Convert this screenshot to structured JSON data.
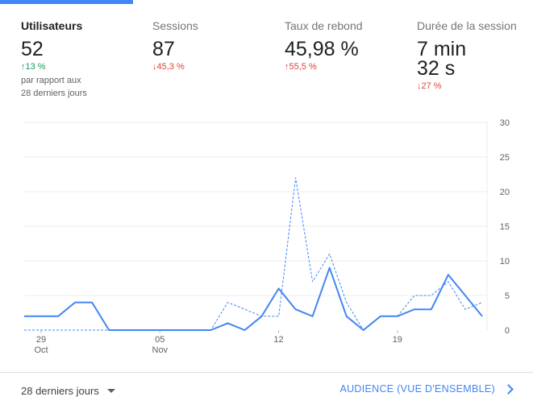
{
  "metrics": [
    {
      "label": "Utilisateurs",
      "value": "52",
      "change": "13 %",
      "direction": "up",
      "compare_line1": "par rapport aux",
      "compare_line2": "28 derniers jours"
    },
    {
      "label": "Sessions",
      "value": "87",
      "change": "45,3 %",
      "direction": "down"
    },
    {
      "label": "Taux de rebond",
      "value": "45,98 %",
      "change": "55,5 %",
      "direction": "up"
    },
    {
      "label": "Durée de la session",
      "value": "7 min\n32 s",
      "change": "27 %",
      "direction": "down"
    }
  ],
  "icons": {
    "up": "arrow-up-icon",
    "down": "arrow-down-icon",
    "dropdown": "caret-down-icon",
    "next": "chevron-right-icon"
  },
  "colors": {
    "accent": "#4285f4",
    "up": "#0f9d58",
    "down": "#db4437"
  },
  "chart_data": {
    "type": "line",
    "ylim": [
      0,
      30
    ],
    "y_ticks": [
      "0",
      "5",
      "10",
      "15",
      "20",
      "25",
      "30"
    ],
    "x_ticks": [
      {
        "day": "29",
        "month": "Oct",
        "index": 1
      },
      {
        "day": "05",
        "month": "Nov",
        "index": 8
      },
      {
        "day": "12",
        "month": "",
        "index": 15
      },
      {
        "day": "19",
        "month": "",
        "index": 22
      }
    ],
    "series": [
      {
        "style": "solid",
        "values": [
          2,
          2,
          2,
          4,
          4,
          0,
          0,
          0,
          0,
          0,
          0,
          0,
          1,
          0,
          2,
          6,
          3,
          2,
          9,
          2,
          0,
          2,
          2,
          3,
          3,
          8,
          5,
          2
        ]
      },
      {
        "style": "dashed",
        "values": [
          0,
          0,
          0,
          0,
          0,
          0,
          0,
          0,
          0,
          0,
          0,
          0,
          4,
          3,
          2,
          2,
          22,
          7,
          11,
          4,
          0,
          2,
          2,
          5,
          5,
          7,
          3,
          4
        ]
      }
    ]
  },
  "footer": {
    "range_label": "28 derniers jours",
    "link_label": "AUDIENCE (VUE D'ENSEMBLE)"
  }
}
